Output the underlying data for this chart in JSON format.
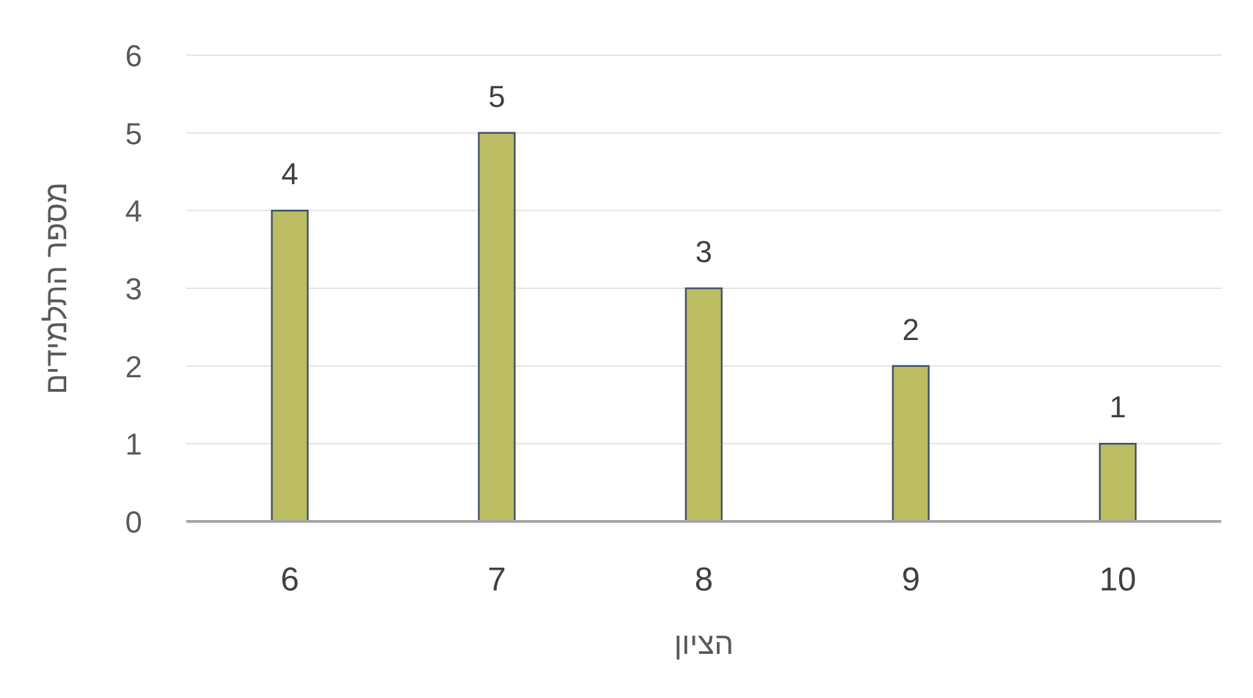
{
  "chart_data": {
    "type": "bar",
    "xlabel": "הציון",
    "ylabel": "מספר התלמידים",
    "categories": [
      "6",
      "7",
      "8",
      "9",
      "10"
    ],
    "values": [
      4,
      5,
      3,
      2,
      1
    ],
    "color": "#bcbd62",
    "ylim": [
      0,
      6
    ],
    "yticks": [
      0,
      1,
      2,
      3,
      4,
      5,
      6
    ],
    "grid": "y",
    "data_labels": true
  }
}
